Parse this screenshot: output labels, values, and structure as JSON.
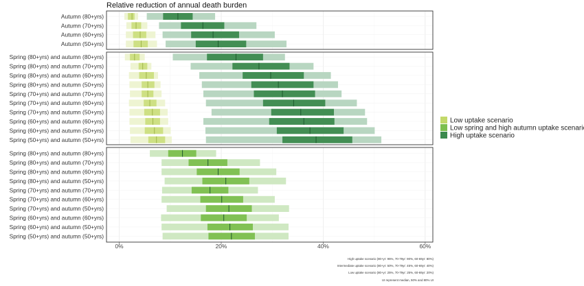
{
  "chart_data": {
    "type": "range-bar",
    "title": "Relative reduction of annual death burden",
    "x_ticks": [
      "0%",
      "20%",
      "40%",
      "60%"
    ],
    "xlim": [
      -2.5,
      61.5
    ],
    "colors": {
      "low": "#c3d96a",
      "mid": "#7cbf4e",
      "high": "#3c8a4e"
    },
    "legend": {
      "position": "right",
      "entries": [
        {
          "key": "low",
          "label": "Low uptake scenario"
        },
        {
          "key": "mid",
          "label": "Low spring and high autumn uptake scenario"
        },
        {
          "key": "high",
          "label": "High uptake scenario"
        }
      ]
    },
    "notes": [
      "High uptake scenario (80+yr: 95%, 70-79yr: 90%, 60-69yr: 80%)",
      "Intermediate uptake scenario (80+yr: 50%, 70-79yr: 45%, 60-69yr: 40%)",
      "Low uptake scenario (80+yr: 25%, 70-79yr: 25%, 60-69yr: 20%)",
      "UI represent median, 50% and 80% UI"
    ],
    "panels": [
      {
        "rows": [
          {
            "label": "Autumn (80+yrs)",
            "bars": [
              {
                "s": "low",
                "i80": [
                  1,
                  3.7
                ],
                "i50": [
                  1.7,
                  3.0
                ],
                "m": 2.5
              },
              {
                "s": "high",
                "i80": [
                  5.4,
                  18.8
                ],
                "i50": [
                  8.6,
                  14.4
                ],
                "m": 11.5
              }
            ]
          },
          {
            "label": "Autumn (70+yrs)",
            "bars": [
              {
                "s": "low",
                "i80": [
                  1.4,
                  5.5
                ],
                "i50": [
                  2.4,
                  4.3
                ],
                "m": 3.3
              },
              {
                "s": "high",
                "i80": [
                  7.8,
                  26.9
                ],
                "i50": [
                  12.1,
                  20.6
                ],
                "m": 16.4
              }
            ]
          },
          {
            "label": "Autumn (60+yrs)",
            "bars": [
              {
                "s": "low",
                "i80": [
                  1.3,
                  7.1
                ],
                "i50": [
                  2.7,
                  5.3
                ],
                "m": 4.1
              },
              {
                "s": "high",
                "i80": [
                  8.5,
                  30.5
                ],
                "i50": [
                  14.1,
                  23.5
                ],
                "m": 18.4
              }
            ]
          },
          {
            "label": "Autumn (50+yrs)",
            "bars": [
              {
                "s": "low",
                "i80": [
                  1.3,
                  7.4
                ],
                "i50": [
                  2.8,
                  5.6
                ],
                "m": 4.3
              },
              {
                "s": "high",
                "i80": [
                  9.1,
                  32.8
                ],
                "i50": [
                  15.0,
                  24.9
                ],
                "m": 19.4
              }
            ]
          }
        ]
      },
      {
        "rows": [
          {
            "label": "Spring (80+yrs) and autumn (80+yrs)",
            "bars": [
              {
                "s": "low",
                "i80": [
                  1.1,
                  5.0
                ],
                "i50": [
                  2.1,
                  4.0
                ],
                "m": 3.0
              },
              {
                "s": "high",
                "i80": [
                  10.5,
                  32.5
                ],
                "i50": [
                  17.2,
                  28.2
                ],
                "m": 22.9
              }
            ]
          },
          {
            "label": "Spring (80+yrs) and autumn (70+yrs)",
            "bars": [
              {
                "s": "low",
                "i80": [
                  2.2,
                  6.3
                ],
                "i50": [
                  3.8,
                  5.5
                ],
                "m": 4.6
              },
              {
                "s": "high",
                "i80": [
                  14.0,
                  38.1
                ],
                "i50": [
                  22.2,
                  33.4
                ],
                "m": 27.4
              }
            ]
          },
          {
            "label": "Spring (80+yrs) and autumn (60+yrs)",
            "bars": [
              {
                "s": "low",
                "i80": [
                  1.9,
                  7.6
                ],
                "i50": [
                  3.9,
                  6.8
                ],
                "m": 5.3
              },
              {
                "s": "high",
                "i80": [
                  15.7,
                  41.5
                ],
                "i50": [
                  24.2,
                  36.2
                ],
                "m": 29.7
              }
            ]
          },
          {
            "label": "Spring (80+yrs) and autumn (50+yrs)",
            "bars": [
              {
                "s": "low",
                "i80": [
                  2.0,
                  8.1
                ],
                "i50": [
                  4.4,
                  6.9
                ],
                "m": 5.6
              },
              {
                "s": "high",
                "i80": [
                  16.2,
                  42.9
                ],
                "i50": [
                  25.9,
                  38.1
                ],
                "m": 31.2
              }
            ]
          },
          {
            "label": "Spring (70+yrs) and autumn (70+yrs)",
            "bars": [
              {
                "s": "low",
                "i80": [
                  2.1,
                  8.3
                ],
                "i50": [
                  4.4,
                  6.7
                ],
                "m": 5.6
              },
              {
                "s": "high",
                "i80": [
                  16.5,
                  43.6
                ],
                "i50": [
                  26.4,
                  38.4
                ],
                "m": 32.0
              }
            ]
          },
          {
            "label": "Spring (70+yrs) and autumn (60+yrs)",
            "bars": [
              {
                "s": "low",
                "i80": [
                  1.9,
                  9.0
                ],
                "i50": [
                  4.8,
                  7.3
                ],
                "m": 6.0
              },
              {
                "s": "high",
                "i80": [
                  17.0,
                  46.6
                ],
                "i50": [
                  28.2,
                  40.4
                ],
                "m": 34.2
              }
            ]
          },
          {
            "label": "Spring (70+yrs) and autumn (50+yrs)",
            "bars": [
              {
                "s": "low",
                "i80": [
                  2.0,
                  9.5
                ],
                "i50": [
                  4.9,
                  8.0
                ],
                "m": 6.5
              },
              {
                "s": "high",
                "i80": [
                  18.1,
                  48.2
                ],
                "i50": [
                  29.8,
                  42.1
                ],
                "m": 35.6
              }
            ]
          },
          {
            "label": "Spring (60+yrs) and autumn (60+yrs)",
            "bars": [
              {
                "s": "low",
                "i80": [
                  2.0,
                  9.6
                ],
                "i50": [
                  5.1,
                  8.0
                ],
                "m": 6.6
              },
              {
                "s": "high",
                "i80": [
                  16.5,
                  48.6
                ],
                "i50": [
                  29.4,
                  42.2
                ],
                "m": 36.2
              }
            ]
          },
          {
            "label": "Spring (60+yrs) and autumn (50+yrs)",
            "bars": [
              {
                "s": "low",
                "i80": [
                  2.1,
                  10.1
                ],
                "i50": [
                  5.0,
                  8.6
                ],
                "m": 6.9
              },
              {
                "s": "high",
                "i80": [
                  16.9,
                  50.1
                ],
                "i50": [
                  30.9,
                  44.0
                ],
                "m": 37.4
              }
            ]
          },
          {
            "label": "Spring (50+yrs) and autumn (50+yrs)",
            "bars": [
              {
                "s": "low",
                "i80": [
                  2.2,
                  10.3
                ],
                "i50": [
                  5.7,
                  9.0
                ],
                "m": 7.3
              },
              {
                "s": "high",
                "i80": [
                  17.0,
                  51.4
                ],
                "i50": [
                  32.0,
                  45.7
                ],
                "m": 38.6
              }
            ]
          }
        ]
      },
      {
        "rows": [
          {
            "label": "Spring (80+yrs) and autumn (80+yrs)",
            "bars": [
              {
                "s": "mid",
                "i80": [
                  6.0,
                  19.0
                ],
                "i50": [
                  9.6,
                  15.1
                ],
                "m": 12.4
              }
            ]
          },
          {
            "label": "Spring (80+yrs) and autumn (70+yrs)",
            "bars": [
              {
                "s": "mid",
                "i80": [
                  8.3,
                  27.6
                ],
                "i50": [
                  13.6,
                  21.2
                ],
                "m": 17.4
              }
            ]
          },
          {
            "label": "Spring (80+yrs) and autumn (60+yrs)",
            "bars": [
              {
                "s": "mid",
                "i80": [
                  8.3,
                  30.8
                ],
                "i50": [
                  15.2,
                  23.6
                ],
                "m": 19.4
              }
            ]
          },
          {
            "label": "Spring (80+yrs) and autumn (50+yrs)",
            "bars": [
              {
                "s": "mid",
                "i80": [
                  8.9,
                  32.7
                ],
                "i50": [
                  16.3,
                  25.5
                ],
                "m": 20.9
              }
            ]
          },
          {
            "label": "Spring (70+yrs) and autumn (70+yrs)",
            "bars": [
              {
                "s": "mid",
                "i80": [
                  8.4,
                  27.2
                ],
                "i50": [
                  14.2,
                  21.4
                ],
                "m": 17.8
              }
            ]
          },
          {
            "label": "Spring (70+yrs) and autumn (60+yrs)",
            "bars": [
              {
                "s": "mid",
                "i80": [
                  8.3,
                  30.5
                ],
                "i50": [
                  15.9,
                  24.3
                ],
                "m": 20.1
              }
            ]
          },
          {
            "label": "Spring (70+yrs) and autumn (50+yrs)",
            "bars": [
              {
                "s": "mid",
                "i80": [
                  9.3,
                  33.3
                ],
                "i50": [
                  17.0,
                  26.0
                ],
                "m": 21.5
              }
            ]
          },
          {
            "label": "Spring (60+yrs) and autumn (60+yrs)",
            "bars": [
              {
                "s": "mid",
                "i80": [
                  8.2,
                  31.3
                ],
                "i50": [
                  16.0,
                  25.0
                ],
                "m": 20.5
              }
            ]
          },
          {
            "label": "Spring (60+yrs) and autumn (50+yrs)",
            "bars": [
              {
                "s": "mid",
                "i80": [
                  8.3,
                  33.2
                ],
                "i50": [
                  17.3,
                  26.2
                ],
                "m": 21.7
              }
            ]
          },
          {
            "label": "Spring (50+yrs) and autumn (50+yrs)",
            "bars": [
              {
                "s": "mid",
                "i80": [
                  8.5,
                  33.2
                ],
                "i50": [
                  17.5,
                  26.6
                ],
                "m": 22.0
              }
            ]
          }
        ]
      }
    ]
  }
}
